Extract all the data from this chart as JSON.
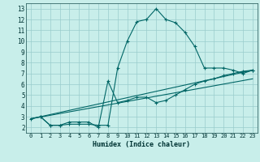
{
  "xlabel": "Humidex (Indice chaleur)",
  "background_color": "#c8eeea",
  "grid_color": "#99cccc",
  "line_color": "#006666",
  "xlim": [
    -0.5,
    23.5
  ],
  "ylim": [
    1.5,
    13.5
  ],
  "xticks": [
    0,
    1,
    2,
    3,
    4,
    5,
    6,
    7,
    8,
    9,
    10,
    11,
    12,
    13,
    14,
    15,
    16,
    17,
    18,
    19,
    20,
    21,
    22,
    23
  ],
  "yticks": [
    2,
    3,
    4,
    5,
    6,
    7,
    8,
    9,
    10,
    11,
    12,
    13
  ],
  "line1_x": [
    1,
    2,
    3,
    4,
    5,
    6,
    7,
    8,
    9,
    10,
    11,
    12,
    13,
    14,
    15,
    16,
    17,
    18,
    19,
    20,
    21,
    22,
    23
  ],
  "line1_y": [
    3.0,
    2.2,
    2.2,
    2.3,
    2.3,
    2.3,
    2.2,
    2.2,
    7.5,
    10.0,
    11.8,
    12.0,
    13.0,
    12.0,
    11.7,
    10.8,
    9.5,
    7.5,
    7.5,
    7.5,
    7.3,
    7.0,
    7.3
  ],
  "line2_x": [
    0,
    1,
    2,
    3,
    4,
    5,
    6,
    7,
    8,
    9,
    10,
    11,
    12,
    13,
    14,
    15,
    16,
    17,
    18,
    19,
    20,
    21,
    22,
    23
  ],
  "line2_y": [
    2.8,
    3.0,
    2.2,
    2.2,
    2.5,
    2.5,
    2.5,
    2.0,
    6.3,
    4.3,
    4.5,
    4.8,
    4.8,
    4.3,
    4.5,
    5.0,
    5.5,
    6.0,
    6.3,
    6.5,
    6.8,
    7.0,
    7.2,
    7.3
  ],
  "line3_x": [
    0,
    23
  ],
  "line3_y": [
    2.8,
    7.3
  ],
  "line4_x": [
    0,
    23
  ],
  "line4_y": [
    2.8,
    6.5
  ]
}
